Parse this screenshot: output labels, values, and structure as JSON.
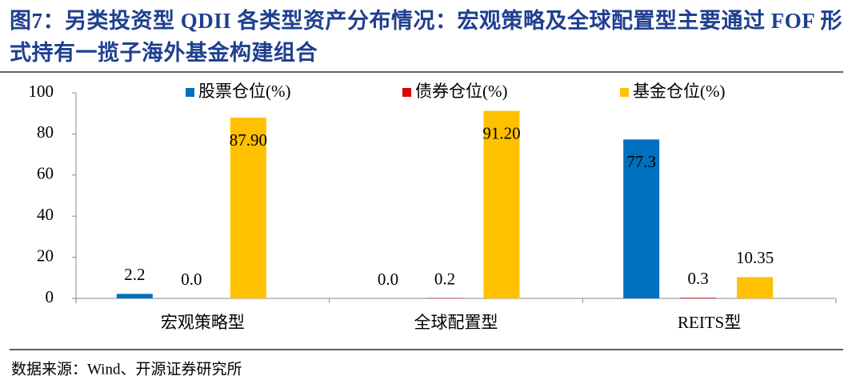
{
  "chart_data": {
    "type": "bar",
    "title": "图7：另类投资型 QDII 各类型资产分布情况：宏观策略及全球配置型主要通过 FOF 形式持有一揽子海外基金构建组合",
    "source": "数据来源：Wind、开源证券研究所",
    "categories": [
      "宏观策略型",
      "全球配置型",
      "REITS型"
    ],
    "series": [
      {
        "name": "股票仓位(%)",
        "color": "#0070c0",
        "values": [
          2.2,
          0,
          77.3
        ],
        "value_labels": [
          "2.2",
          "0.0",
          "77.3"
        ]
      },
      {
        "name": "债券仓位(%)",
        "color": "#e00000",
        "values": [
          0,
          0.2,
          0.3
        ],
        "value_labels": [
          "0.0",
          "0.2",
          "0.3"
        ]
      },
      {
        "name": "基金仓位(%)",
        "color": "#ffc000",
        "values": [
          87.9,
          91.2,
          10.35
        ],
        "value_labels": [
          "87.90",
          "91.20",
          "10.35"
        ]
      }
    ],
    "ylim": [
      0,
      100
    ],
    "yticks": [
      0,
      20,
      40,
      60,
      80,
      100
    ],
    "grid": false
  }
}
